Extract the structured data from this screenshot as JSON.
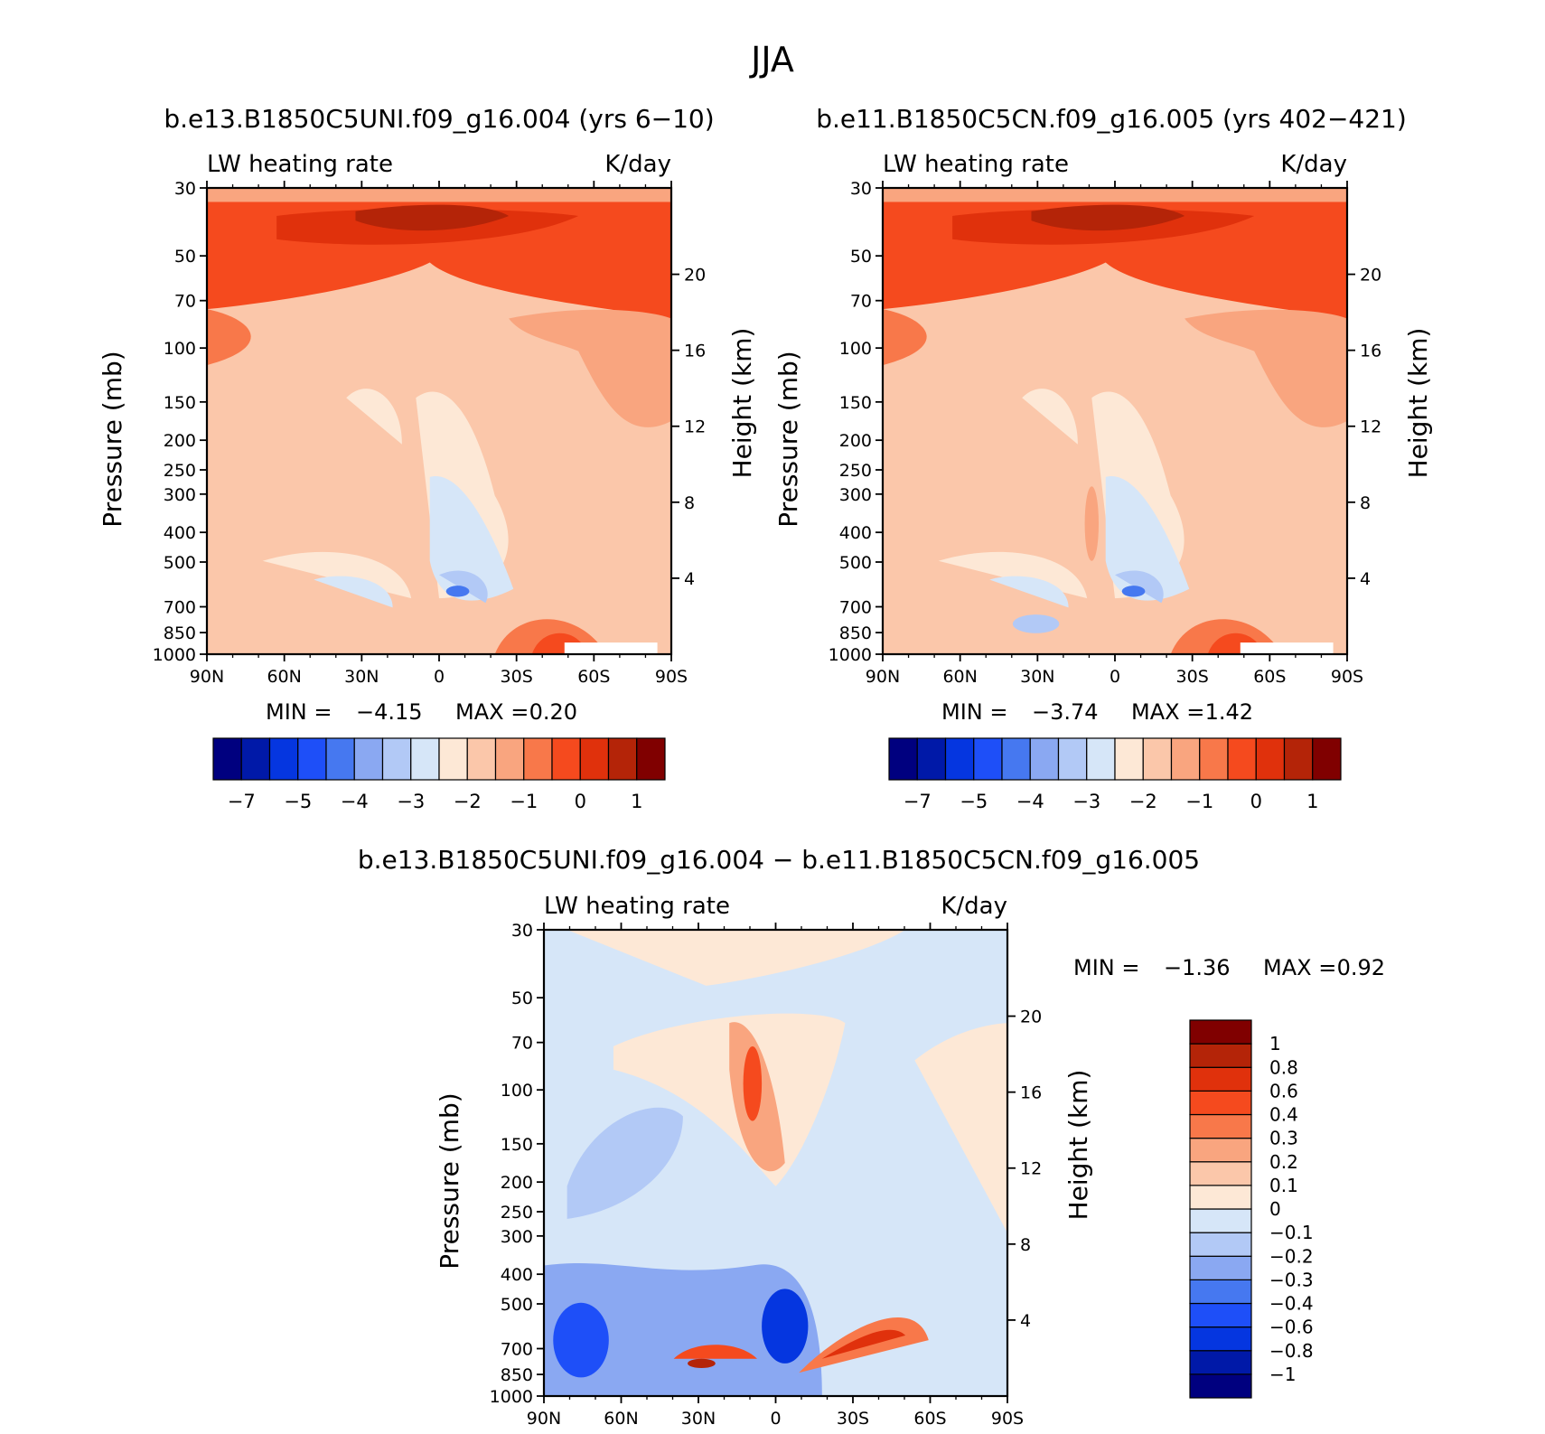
{
  "title": "JJA",
  "panel_titles": {
    "left": "b.e13.B1850C5UNI.f09_g16.004 (yrs 6−10)",
    "right": "b.e11.B1850C5CN.f09_g16.005 (yrs 402−421)",
    "diff": "b.e13.B1850C5UNI.f09_g16.004 − b.e11.B1850C5CN.f09_g16.005"
  },
  "colors": {
    "abs_scale": [
      "#00007f",
      "#0019a8",
      "#0536e0",
      "#1e4ff8",
      "#4678f0",
      "#8aa8f2",
      "#b2c9f6",
      "#d6e6f8",
      "#fde8d6",
      "#fbc7aa",
      "#f9a57f",
      "#f8784a",
      "#f54a1e",
      "#e0310c",
      "#b42408",
      "#800000"
    ],
    "diff_scale": [
      "#00007f",
      "#0019a8",
      "#0536e0",
      "#1e4ff8",
      "#4678f0",
      "#8aa8f2",
      "#b2c9f6",
      "#d6e6f8",
      "#fde8d6",
      "#fbc7aa",
      "#f9a57f",
      "#f8784a",
      "#f54a1e",
      "#e0310c",
      "#b42408",
      "#800000"
    ]
  },
  "chart_data": [
    {
      "type": "heatmap",
      "id": "left",
      "subtitle_left": "LW heating rate",
      "subtitle_right": "K/day",
      "ylabel": "Pressure (mb)",
      "y2label": "Height (km)",
      "x_ticks": [
        "90N",
        "60N",
        "30N",
        "0",
        "30S",
        "60S",
        "90S"
      ],
      "y_ticks": [
        "30",
        "50",
        "70",
        "100",
        "150",
        "200",
        "250",
        "300",
        "400",
        "500",
        "700",
        "850",
        "1000"
      ],
      "y_tick_values": [
        30,
        50,
        70,
        100,
        150,
        200,
        250,
        300,
        400,
        500,
        700,
        850,
        1000
      ],
      "height_ticks": [
        "20",
        "16",
        "12",
        "8",
        "4"
      ],
      "height_tick_values": [
        20,
        16,
        12,
        8,
        4
      ],
      "min_label": "MIN =",
      "min": "−4.15",
      "max_label": "MAX =",
      "max": "0.20",
      "colorbar_labels": [
        "−7",
        "−5",
        "−4",
        "−3",
        "−2",
        "−1",
        "0",
        "1"
      ]
    },
    {
      "type": "heatmap",
      "id": "right",
      "subtitle_left": "LW heating rate",
      "subtitle_right": "K/day",
      "ylabel": "Pressure (mb)",
      "y2label": "Height (km)",
      "x_ticks": [
        "90N",
        "60N",
        "30N",
        "0",
        "30S",
        "60S",
        "90S"
      ],
      "y_ticks": [
        "30",
        "50",
        "70",
        "100",
        "150",
        "200",
        "250",
        "300",
        "400",
        "500",
        "700",
        "850",
        "1000"
      ],
      "y_tick_values": [
        30,
        50,
        70,
        100,
        150,
        200,
        250,
        300,
        400,
        500,
        700,
        850,
        1000
      ],
      "height_ticks": [
        "20",
        "16",
        "12",
        "8",
        "4"
      ],
      "height_tick_values": [
        20,
        16,
        12,
        8,
        4
      ],
      "min_label": "MIN =",
      "min": "−3.74",
      "max_label": "MAX =",
      "max": "1.42",
      "colorbar_labels": [
        "−7",
        "−5",
        "−4",
        "−3",
        "−2",
        "−1",
        "0",
        "1"
      ]
    },
    {
      "type": "heatmap",
      "id": "diff",
      "subtitle_left": "LW heating rate",
      "subtitle_right": "K/day",
      "ylabel": "Pressure (mb)",
      "y2label": "Height (km)",
      "x_ticks": [
        "90N",
        "60N",
        "30N",
        "0",
        "30S",
        "60S",
        "90S"
      ],
      "y_ticks": [
        "30",
        "50",
        "70",
        "100",
        "150",
        "200",
        "250",
        "300",
        "400",
        "500",
        "700",
        "850",
        "1000"
      ],
      "y_tick_values": [
        30,
        50,
        70,
        100,
        150,
        200,
        250,
        300,
        400,
        500,
        700,
        850,
        1000
      ],
      "height_ticks": [
        "20",
        "16",
        "12",
        "8",
        "4"
      ],
      "height_tick_values": [
        20,
        16,
        12,
        8,
        4
      ],
      "min_label": "MIN =",
      "min": "−1.36",
      "max_label": "MAX =",
      "max": "0.92",
      "colorbar_labels": [
        "1",
        "0.8",
        "0.6",
        "0.4",
        "0.3",
        "0.2",
        "0.1",
        "0",
        "−0.1",
        "−0.2",
        "−0.3",
        "−0.4",
        "−0.6",
        "−0.8",
        "−1"
      ]
    }
  ]
}
